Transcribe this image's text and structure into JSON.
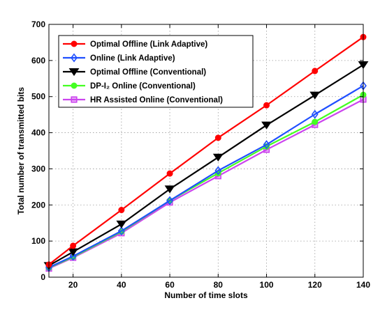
{
  "chart_data": {
    "type": "line",
    "x": [
      10,
      20,
      40,
      60,
      80,
      100,
      120,
      140
    ],
    "xlabel": "Number of time slots",
    "ylabel": "Total number of transmitted bits",
    "xlim": [
      10,
      140
    ],
    "ylim": [
      0,
      700
    ],
    "xticks": [
      20,
      40,
      60,
      80,
      100,
      120,
      140
    ],
    "yticks": [
      0,
      100,
      200,
      300,
      400,
      500,
      600,
      700
    ],
    "grid": true,
    "legend_position": "top-left",
    "series": [
      {
        "name": "Optimal Offline (Link Adaptive)",
        "color": "#ff0000",
        "marker": "circle",
        "values": [
          35,
          87,
          186,
          287,
          386,
          476,
          571,
          665
        ]
      },
      {
        "name": "Online (Link Adaptive)",
        "color": "#1f4fff",
        "marker": "diamond",
        "values": [
          27,
          58,
          128,
          212,
          295,
          367,
          451,
          530
        ]
      },
      {
        "name": "Optimal Offline (Conventional)",
        "color": "#000000",
        "marker": "triangle-down",
        "values": [
          32,
          70,
          147,
          244,
          332,
          421,
          504,
          588
        ]
      },
      {
        "name": "DP-I₂ Online (Conventional)",
        "color": "#44ff22",
        "marker": "circle",
        "values": [
          26,
          56,
          126,
          212,
          288,
          362,
          430,
          505
        ]
      },
      {
        "name": "HR Assisted Online (Conventional)",
        "color": "#cc44ee",
        "marker": "square",
        "values": [
          24,
          54,
          122,
          207,
          280,
          353,
          422,
          492
        ]
      }
    ]
  }
}
